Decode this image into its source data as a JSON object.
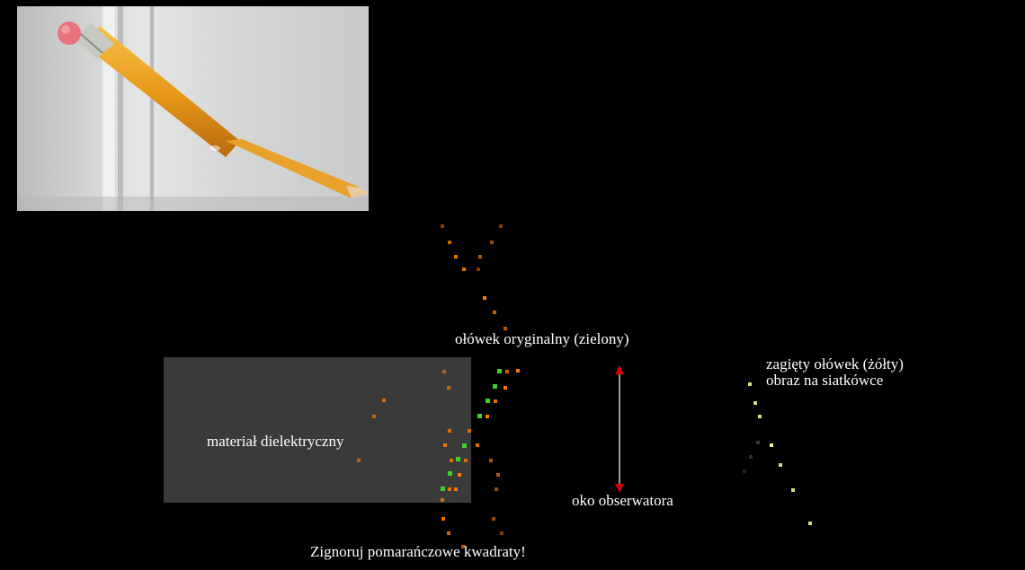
{
  "labels": {
    "original_pencil": "ołówek oryginalny (zielony)",
    "bent_pencil": "zagięty ołówek (żółty)",
    "retina_image": "obraz na siatkówce",
    "dielectric": "materiał dielektryczny",
    "observer_eye": "oko obserwatora",
    "ignore_note": "Zignoruj pomarańczowe kwadraty!"
  },
  "colors": {
    "background": "#000000",
    "dielectric": "#3a3a3a",
    "green": "#3bd32b",
    "orange": "#ff7a00",
    "yellow": "#f4f28a",
    "arrow": "#d40000"
  },
  "photo": {
    "subject": "pencil-in-water-refraction"
  }
}
